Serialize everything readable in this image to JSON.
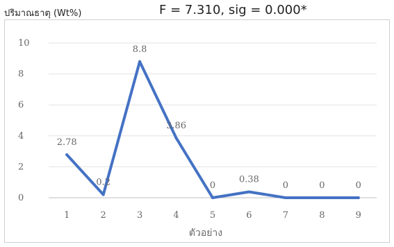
{
  "header": {
    "y_axis_label": "ปริมาณธาตุ (Wt%)",
    "statistic": "F = 7.310, sig = 0.000*"
  },
  "chart_data": {
    "type": "line",
    "x": [
      "1",
      "2",
      "3",
      "4",
      "5",
      "6",
      "7",
      "8",
      "9"
    ],
    "series": [
      {
        "values": [
          2.78,
          0.2,
          8.8,
          3.86,
          0,
          0.38,
          0,
          0,
          0
        ],
        "data_labels": [
          "2.78",
          "0.2",
          "8.8",
          "3.86",
          "0",
          "0.38",
          "0",
          "0",
          "0"
        ],
        "color": "#4472c4"
      }
    ],
    "y_ticks": [
      "0",
      "2",
      "4",
      "6",
      "8",
      "10"
    ],
    "ylim": [
      0,
      10
    ],
    "xlabel": "ตัวอย่าง",
    "ylabel": "ปริมาณธาตุ (Wt%)",
    "grid": true
  }
}
